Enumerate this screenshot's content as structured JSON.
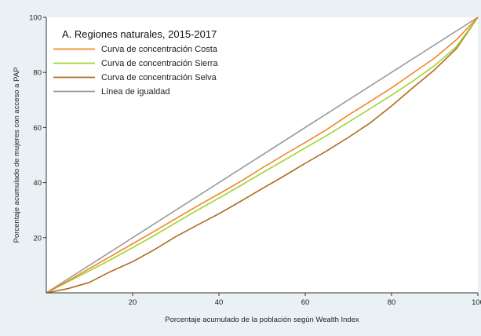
{
  "chart_data": {
    "type": "line",
    "title": "",
    "xlabel": "Porcentaje acumulado de la población según Wealth Index",
    "ylabel": "Porcentaje acumulado de mujeres con acceso a PAP",
    "xlim": [
      0,
      100
    ],
    "ylim": [
      0,
      100
    ],
    "x_ticks": [
      20,
      40,
      60,
      80,
      100
    ],
    "y_ticks": [
      20,
      40,
      60,
      80,
      100
    ],
    "grid": false,
    "legend": {
      "title": "A. Regiones naturales, 2015-2017",
      "position": "top-left"
    },
    "series": [
      {
        "name": "Curva de concentración Costa",
        "color": "#f0862a",
        "x": [
          0,
          5,
          10,
          15,
          20,
          25,
          30,
          35,
          40,
          45,
          50,
          55,
          60,
          65,
          70,
          75,
          80,
          85,
          90,
          95,
          100
        ],
        "y": [
          0,
          4.3,
          8.8,
          13.3,
          17.8,
          22.3,
          26.9,
          31.5,
          35.9,
          40.4,
          45.3,
          50.0,
          54.6,
          59.3,
          64.5,
          69.4,
          74.4,
          79.8,
          85.2,
          91.8,
          100
        ]
      },
      {
        "name": "Curva de concentración Sierra",
        "color": "#9fd62c",
        "x": [
          0,
          5,
          10,
          15,
          20,
          25,
          30,
          35,
          40,
          45,
          50,
          55,
          60,
          65,
          70,
          75,
          80,
          85,
          90,
          95,
          100
        ],
        "y": [
          0,
          4.0,
          8.0,
          12.1,
          16.4,
          20.8,
          25.4,
          30.0,
          34.4,
          38.9,
          43.5,
          48.0,
          52.6,
          57.1,
          61.9,
          66.8,
          71.7,
          76.9,
          82.5,
          89.3,
          100
        ]
      },
      {
        "name": "Curva de concentración Selva",
        "color": "#b06a20",
        "x": [
          0,
          5,
          10,
          15,
          20,
          25,
          30,
          35,
          40,
          45,
          50,
          55,
          60,
          65,
          70,
          75,
          80,
          85,
          90,
          95,
          100
        ],
        "y": [
          0,
          1.5,
          3.8,
          7.8,
          11.3,
          15.6,
          20.4,
          24.6,
          28.7,
          33.2,
          37.8,
          42.3,
          47.0,
          51.5,
          56.4,
          61.6,
          67.8,
          74.5,
          81.0,
          88.6,
          100
        ]
      },
      {
        "name": "Línea de igualdad",
        "color": "#9a9a9a",
        "x": [
          0,
          100
        ],
        "y": [
          0,
          100
        ]
      }
    ]
  }
}
